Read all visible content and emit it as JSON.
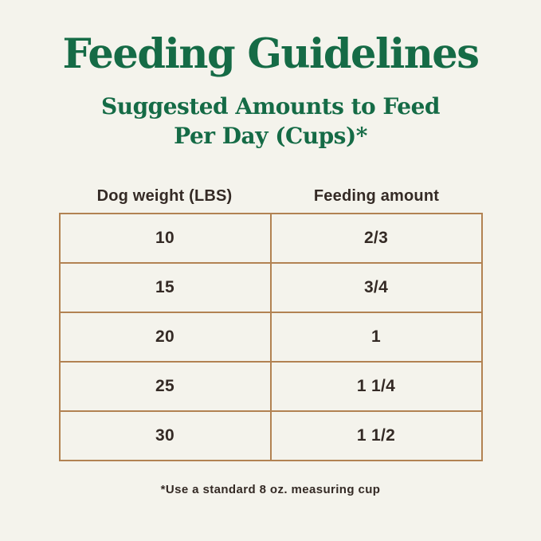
{
  "page": {
    "title": "Feeding Guidelines",
    "subtitle_line1": "Suggested Amounts to Feed",
    "subtitle_line2": "Per Day (Cups)*"
  },
  "table": {
    "headers": {
      "weight": "Dog weight (LBS)",
      "amount": "Feeding amount"
    },
    "rows": [
      {
        "weight": "10",
        "amount": "2/3"
      },
      {
        "weight": "15",
        "amount": "3/4"
      },
      {
        "weight": "20",
        "amount": "1"
      },
      {
        "weight": "25",
        "amount": "1 1/4"
      },
      {
        "weight": "30",
        "amount": "1 1/2"
      }
    ]
  },
  "footnote": "*Use a standard 8 oz. measuring cup",
  "colors": {
    "green": "#156b46",
    "border_tan": "#b28252",
    "text_dark": "#342a25",
    "background": "#f4f3ec"
  }
}
